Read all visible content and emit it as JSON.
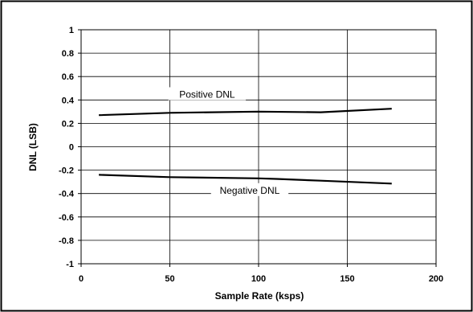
{
  "chart_data": {
    "type": "line",
    "xlabel": "Sample Rate (ksps)",
    "ylabel": "DNL (LSB)",
    "xlim": [
      0,
      200
    ],
    "ylim": [
      -1,
      1
    ],
    "xticks": [
      0,
      50,
      100,
      150,
      200
    ],
    "xtick_labels": [
      "0",
      "50",
      "100",
      "150",
      "200"
    ],
    "yticks": [
      1,
      0.8,
      0.6,
      0.4,
      0.2,
      0,
      -0.2,
      -0.4,
      -0.6,
      -0.8,
      -1
    ],
    "ytick_labels": [
      "1",
      "0.8",
      "0.6",
      "0.4",
      "0.2",
      "0",
      "-0.2",
      "-0.4",
      "-0.6",
      "-0.8",
      "-1"
    ],
    "grid": true,
    "legend": "none",
    "series": [
      {
        "name": "Positive DNL",
        "x": [
          10,
          50,
          100,
          135,
          175
        ],
        "y": [
          0.27,
          0.29,
          0.3,
          0.295,
          0.325
        ]
      },
      {
        "name": "Negative DNL",
        "x": [
          10,
          50,
          100,
          110,
          135,
          175
        ],
        "y": [
          -0.24,
          -0.26,
          -0.27,
          -0.275,
          -0.29,
          -0.315
        ]
      }
    ],
    "annotations": [
      {
        "text": "Positive DNL",
        "x": 71,
        "y": 0.44
      },
      {
        "text": "Negative DNL",
        "x": 95,
        "y": -0.38
      }
    ],
    "line_color": "#000000",
    "grid_color": "#000000",
    "frame_color": "#000000"
  }
}
